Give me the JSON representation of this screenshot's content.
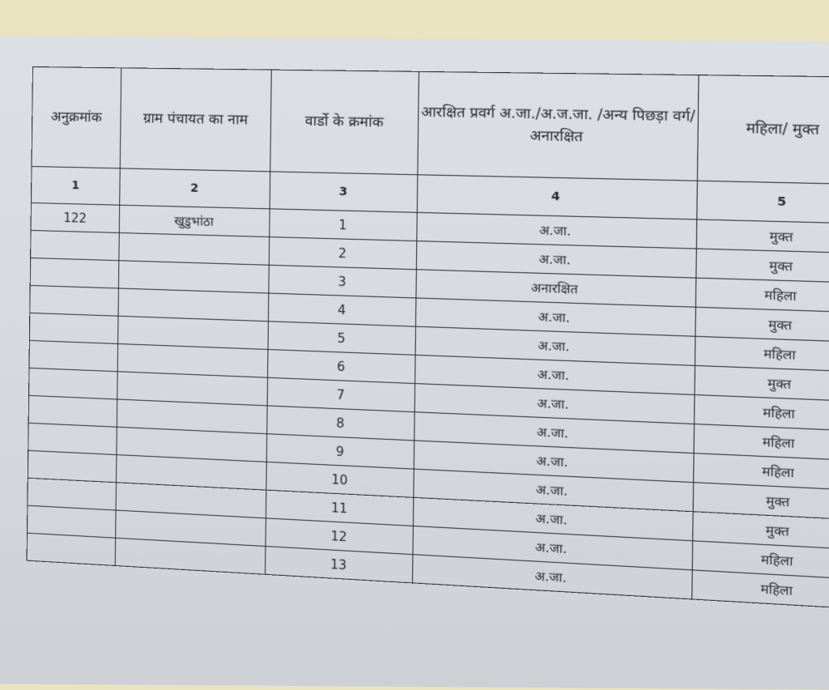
{
  "headers": [
    "अनुक्रमांक",
    "ग्राम पंचायत का नाम",
    "वार्डो के क्रमांक",
    "आरक्षित प्रवर्ग अ.जा./अ.ज.जा. /अन्य पिछड़ा वर्ग/अनारक्षित",
    "महिला/ मुक्त"
  ],
  "column_numbers": [
    "1",
    "2",
    "3",
    "4",
    "5"
  ],
  "rows": [
    {
      "serial": "122",
      "panchayat": "खुडुभांठा",
      "ward": "1",
      "category": "अ.जा.",
      "type": "मुक्त"
    },
    {
      "serial": "",
      "panchayat": "",
      "ward": "2",
      "category": "अ.जा.",
      "type": "मुक्त"
    },
    {
      "serial": "",
      "panchayat": "",
      "ward": "3",
      "category": "अनारक्षित",
      "type": "महिला"
    },
    {
      "serial": "",
      "panchayat": "",
      "ward": "4",
      "category": "अ.जा.",
      "type": "मुक्त"
    },
    {
      "serial": "",
      "panchayat": "",
      "ward": "5",
      "category": "अ.जा.",
      "type": "महिला"
    },
    {
      "serial": "",
      "panchayat": "",
      "ward": "6",
      "category": "अ.जा.",
      "type": "मुक्त"
    },
    {
      "serial": "",
      "panchayat": "",
      "ward": "7",
      "category": "अ.जा.",
      "type": "महिला"
    },
    {
      "serial": "",
      "panchayat": "",
      "ward": "8",
      "category": "अ.जा.",
      "type": "महिला"
    },
    {
      "serial": "",
      "panchayat": "",
      "ward": "9",
      "category": "अ.जा.",
      "type": "महिला"
    },
    {
      "serial": "",
      "panchayat": "",
      "ward": "10",
      "category": "अ.जा.",
      "type": "मुक्त"
    },
    {
      "serial": "",
      "panchayat": "",
      "ward": "11",
      "category": "अ.जा.",
      "type": "मुक्त"
    },
    {
      "serial": "",
      "panchayat": "",
      "ward": "12",
      "category": "अ.जा.",
      "type": "महिला"
    },
    {
      "serial": "",
      "panchayat": "",
      "ward": "13",
      "category": "अ.जा.",
      "type": "महिला"
    }
  ]
}
